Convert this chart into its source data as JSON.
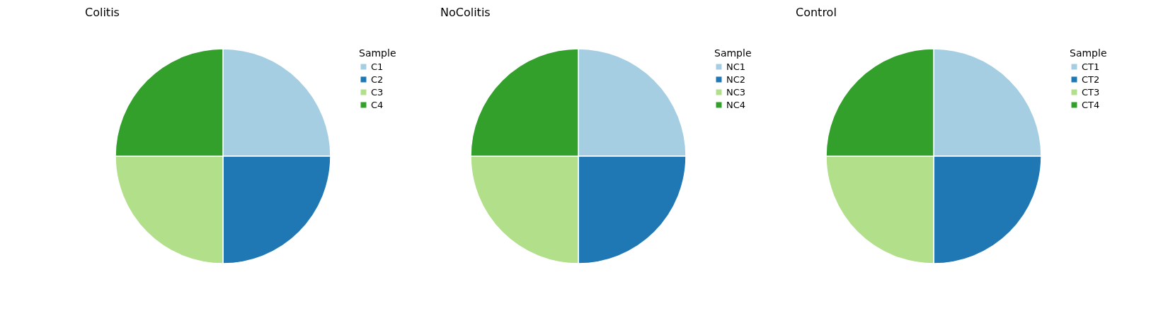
{
  "chart_data": [
    {
      "type": "pie",
      "title": "Colitis",
      "legend_title": "Sample",
      "legend": "right",
      "categories": [
        "C1",
        "C2",
        "C3",
        "C4"
      ],
      "values": [
        25,
        25,
        25,
        25
      ],
      "colors": [
        "#a6cee3",
        "#1f78b4",
        "#b2df8a",
        "#33a02c"
      ]
    },
    {
      "type": "pie",
      "title": "NoColitis",
      "legend_title": "Sample",
      "legend": "right",
      "categories": [
        "NC1",
        "NC2",
        "NC3",
        "NC4"
      ],
      "values": [
        25,
        25,
        25,
        25
      ],
      "colors": [
        "#a6cee3",
        "#1f78b4",
        "#b2df8a",
        "#33a02c"
      ]
    },
    {
      "type": "pie",
      "title": "Control",
      "legend_title": "Sample",
      "legend": "right",
      "categories": [
        "CT1",
        "CT2",
        "CT3",
        "CT4"
      ],
      "values": [
        25,
        25,
        25,
        25
      ],
      "colors": [
        "#a6cee3",
        "#1f78b4",
        "#b2df8a",
        "#33a02c"
      ]
    }
  ]
}
